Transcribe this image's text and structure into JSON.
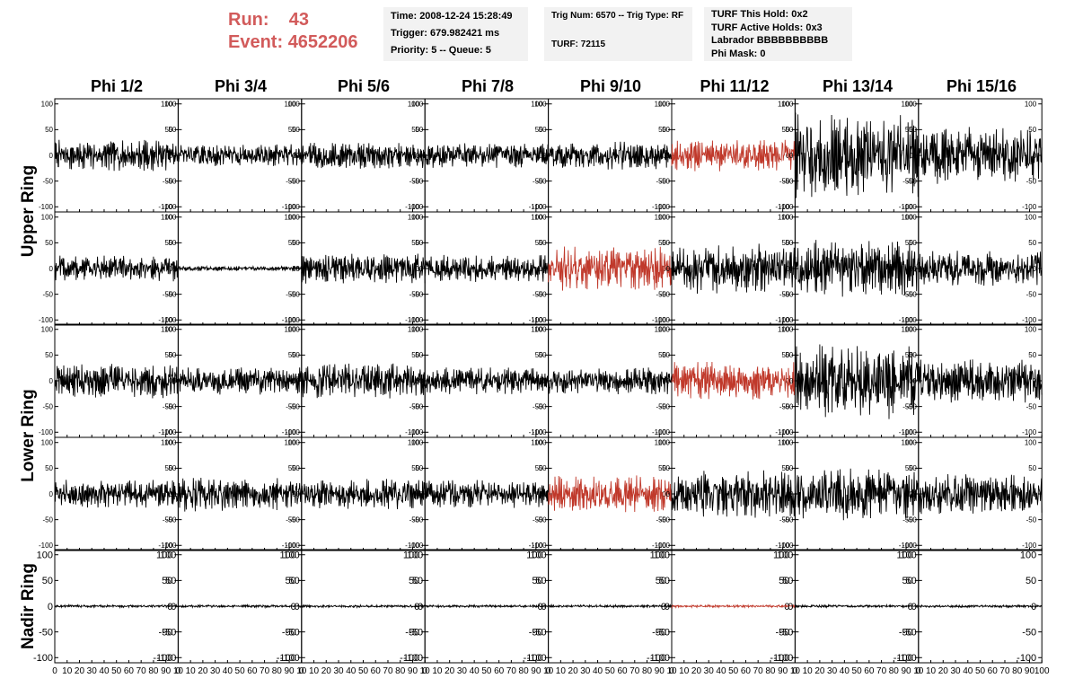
{
  "header": {
    "run_label": "Run:",
    "run_value": "43",
    "event_label": "Event:",
    "event_value": "4652206",
    "time": "Time: 2008-12-24 15:28:49",
    "trigger": "Trigger: 679.982421 ms",
    "priority": "Priority: 5 -- Queue: 5",
    "trig_num": "Trig Num: 6570 -- Trig Type: RF",
    "turf": "TURF: 72115",
    "turf_hold": "TURF This Hold: 0x2",
    "turf_active": "TURF Active Holds: 0x3",
    "labrador": "Labrador BBBBBBBBBB",
    "phi_mask": "Phi Mask: 0"
  },
  "phi_labels": [
    "Phi 1/2",
    "Phi 3/4",
    "Phi 5/6",
    "Phi 7/8",
    "Phi 9/10",
    "Phi 11/12",
    "Phi 13/14",
    "Phi 15/16"
  ],
  "ring_labels": [
    "Upper Ring",
    "Lower Ring",
    "Nadir Ring"
  ],
  "colors": {
    "trace": "#000000",
    "highlight": "#c0392b",
    "header_red": "#d25b5b",
    "info_bg": "#f2f2f2"
  },
  "chart_data": {
    "type": "line",
    "grid": "8 columns x 5 rows of waveform panels",
    "xlim": [
      0,
      100
    ],
    "ylim": [
      -110,
      110
    ],
    "y_ticks": [
      100,
      50,
      0,
      -50,
      -100
    ],
    "x_ticks": [
      0,
      10,
      20,
      30,
      40,
      50,
      60,
      70,
      80,
      90,
      100
    ],
    "x_tick_labels_bottom": "0 10 20 30 40 50 60 70 80 90 10",
    "x_tick_label_last": "100",
    "highlighted_panels": [
      [
        0,
        5
      ],
      [
        1,
        4
      ],
      [
        2,
        5
      ],
      [
        3,
        4
      ],
      [
        4,
        5
      ]
    ],
    "panel_amplitudes": [
      [
        25,
        18,
        22,
        20,
        22,
        25,
        70,
        45
      ],
      [
        22,
        4,
        25,
        22,
        35,
        40,
        45,
        30
      ],
      [
        28,
        22,
        28,
        22,
        22,
        30,
        60,
        35
      ],
      [
        22,
        28,
        25,
        22,
        30,
        38,
        42,
        32
      ],
      [
        2,
        2,
        2,
        2,
        2,
        2,
        2,
        2
      ]
    ]
  }
}
